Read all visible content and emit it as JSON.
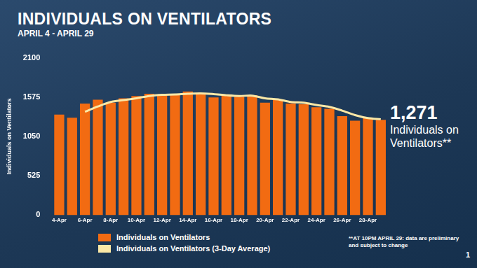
{
  "chart_data": {
    "type": "bar",
    "title": "INDIVIDUALS ON VENTILATORS",
    "subtitle": "APRIL 4 - APRIL 29",
    "y_label": "Individuals on Ventilators",
    "categories": [
      "4-Apr",
      null,
      "6-Apr",
      null,
      "8-Apr",
      null,
      "10-Apr",
      null,
      "12-Apr",
      null,
      "14-Apr",
      null,
      "16-Apr",
      null,
      "18-Apr",
      null,
      "20-Apr",
      null,
      "22-Apr",
      null,
      "24-Apr",
      null,
      "26-Apr",
      null,
      "28-Apr",
      null
    ],
    "series": [
      {
        "name": "Individuals on Ventilators",
        "type": "bar",
        "color": "#f26b12",
        "values": [
          1341,
          1300,
          1490,
          1540,
          1500,
          1560,
          1590,
          1620,
          1600,
          1600,
          1650,
          1630,
          1570,
          1600,
          1580,
          1600,
          1500,
          1540,
          1490,
          1480,
          1440,
          1420,
          1320,
          1260,
          1300,
          1271
        ]
      },
      {
        "name": "Individuals on Ventilators (3-Day Average)",
        "type": "line",
        "color": "#fbe8a6",
        "marker": "none",
        "values": [
          null,
          null,
          1380,
          1450,
          1510,
          1535,
          1560,
          1590,
          1605,
          1610,
          1620,
          1625,
          1615,
          1600,
          1590,
          1595,
          1560,
          1545,
          1510,
          1500,
          1470,
          1445,
          1395,
          1335,
          1295,
          1280
        ]
      }
    ],
    "ylim": [
      0,
      2100
    ],
    "yticks": [
      0,
      525,
      1050,
      1575,
      2100
    ],
    "grid": false,
    "legend": "bottom",
    "callout": {
      "value": 1271,
      "label": "1,271",
      "text": "Individuals on Ventilators**"
    },
    "footnote": "**AT 10PM APRIL 29: data are preliminary and subject to change",
    "page_number": "1"
  }
}
